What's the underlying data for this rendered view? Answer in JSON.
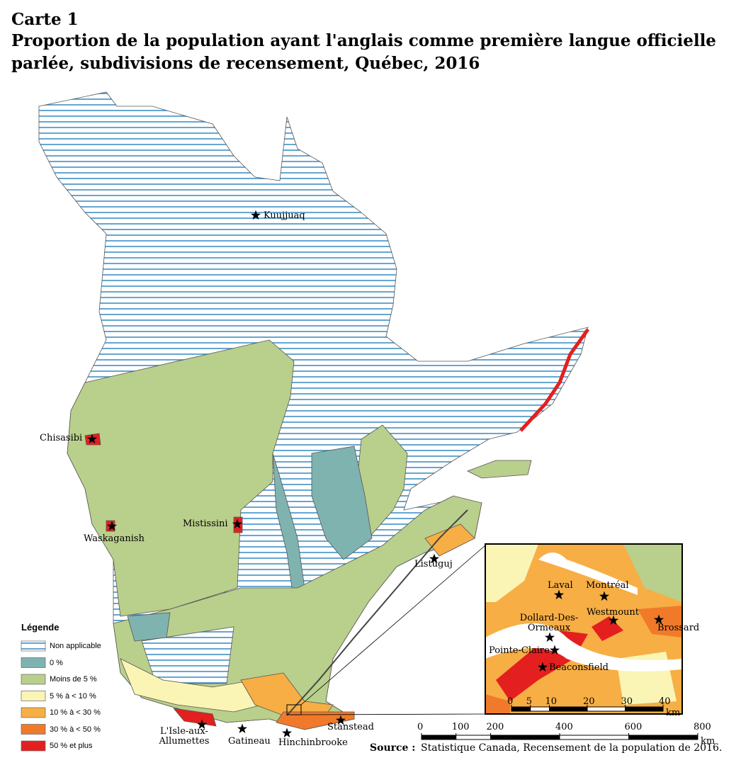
{
  "header": {
    "label": "Carte 1",
    "title_lines": [
      "Proportion de la population ayant l'anglais comme première langue officielle",
      "parlée, subdivisions de recensement, Québec, 2016"
    ]
  },
  "legend": {
    "title": "Légende",
    "items": [
      {
        "label": "Non applicable",
        "color": "hatch"
      },
      {
        "label": "0 %",
        "color": "#7fb3b0"
      },
      {
        "label": "Moins de 5 %",
        "color": "#b9cf8c"
      },
      {
        "label": "5 % à < 10 %",
        "color": "#fbf5b5"
      },
      {
        "label": "10 % à < 30 %",
        "color": "#f7ae45"
      },
      {
        "label": "30 % à < 50 %",
        "color": "#f07a2a"
      },
      {
        "label": "50 % et plus",
        "color": "#e3201f"
      }
    ]
  },
  "places": [
    "Kuujjuaq",
    "Chisasibi",
    "Waskaganish",
    "Mistissini",
    "Listuguj",
    "L'Isle-aux-Allumettes",
    "Gatineau",
    "Hinchinbrooke",
    "Stanstead"
  ],
  "inset_places": [
    "Laval",
    "Montréal",
    "Westmount",
    "Brossard",
    "Dollard-Des-Ormeaux",
    "Pointe-Claire",
    "Beaconsfield"
  ],
  "scale": {
    "ticks": [
      0,
      100,
      200,
      400,
      600,
      800
    ],
    "unit": "km"
  },
  "inset_scale": {
    "ticks": [
      0,
      5,
      10,
      20,
      30,
      40
    ],
    "unit": "km"
  },
  "source": {
    "label": "Source :",
    "text": "Statistique Canada, Recensement de la population de 2016."
  }
}
